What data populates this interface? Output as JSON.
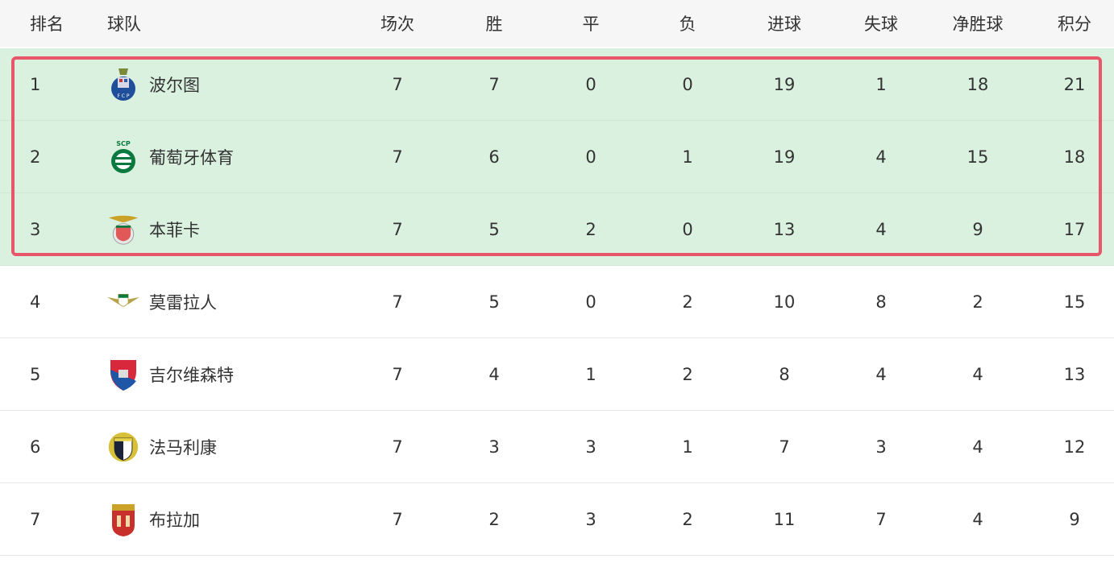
{
  "headers": {
    "rank": "排名",
    "team": "球队",
    "played": "场次",
    "won": "胜",
    "drawn": "平",
    "lost": "负",
    "gf": "进球",
    "ga": "失球",
    "gd": "净胜球",
    "pts": "积分"
  },
  "colors": {
    "highlight_bg": "#dbf1e0",
    "highlight_border": "#e8566a",
    "header_bg": "#f6f6f6"
  },
  "rows": [
    {
      "rank": "1",
      "team": "波尔图",
      "logo": "porto-crest-icon",
      "played": "7",
      "won": "7",
      "drawn": "0",
      "lost": "0",
      "gf": "19",
      "ga": "1",
      "gd": "18",
      "pts": "21"
    },
    {
      "rank": "2",
      "team": "葡萄牙体育",
      "logo": "sporting-crest-icon",
      "played": "7",
      "won": "6",
      "drawn": "0",
      "lost": "1",
      "gf": "19",
      "ga": "4",
      "gd": "15",
      "pts": "18"
    },
    {
      "rank": "3",
      "team": "本菲卡",
      "logo": "benfica-crest-icon",
      "played": "7",
      "won": "5",
      "drawn": "2",
      "lost": "0",
      "gf": "13",
      "ga": "4",
      "gd": "9",
      "pts": "17"
    },
    {
      "rank": "4",
      "team": "莫雷拉人",
      "logo": "moreirense-crest-icon",
      "played": "7",
      "won": "5",
      "drawn": "0",
      "lost": "2",
      "gf": "10",
      "ga": "8",
      "gd": "2",
      "pts": "15"
    },
    {
      "rank": "5",
      "team": "吉尔维森特",
      "logo": "gil-vicente-crest-icon",
      "played": "7",
      "won": "4",
      "drawn": "1",
      "lost": "2",
      "gf": "8",
      "ga": "4",
      "gd": "4",
      "pts": "13"
    },
    {
      "rank": "6",
      "team": "法马利康",
      "logo": "famalicao-crest-icon",
      "played": "7",
      "won": "3",
      "drawn": "3",
      "lost": "1",
      "gf": "7",
      "ga": "3",
      "gd": "4",
      "pts": "12"
    },
    {
      "rank": "7",
      "team": "布拉加",
      "logo": "braga-crest-icon",
      "played": "7",
      "won": "2",
      "drawn": "3",
      "lost": "2",
      "gf": "11",
      "ga": "7",
      "gd": "4",
      "pts": "9"
    }
  ]
}
